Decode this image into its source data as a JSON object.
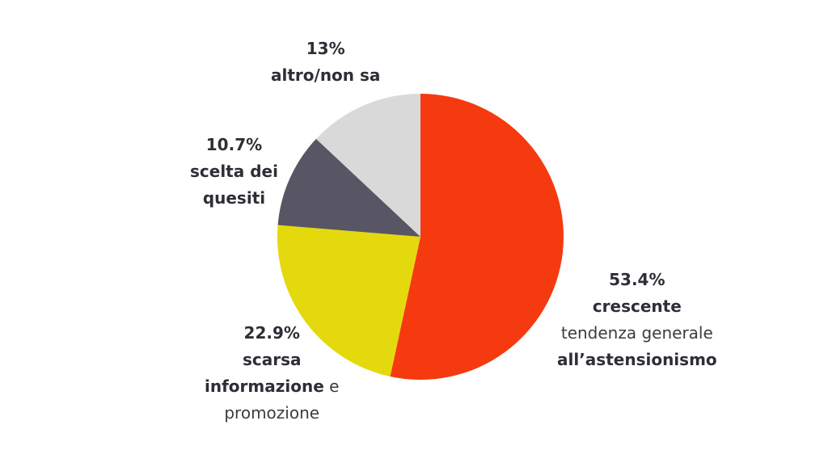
{
  "chart_data": {
    "type": "pie",
    "start_angle_deg": 0,
    "direction": "clockwise",
    "slices": [
      {
        "value": 53.4,
        "value_label": "53.4%",
        "color": "#f43a0e",
        "lines": [
          [
            {
              "text": "crescente",
              "weight": "bold"
            }
          ],
          [
            {
              "text": "tendenza generale",
              "weight": "normal"
            }
          ],
          [
            {
              "text": "all’astensionismo",
              "weight": "bold"
            }
          ]
        ]
      },
      {
        "value": 22.9,
        "value_label": "22.9%",
        "color": "#e3d90d",
        "lines": [
          [
            {
              "text": "scarsa",
              "weight": "bold"
            }
          ],
          [
            {
              "text": "informazione",
              "weight": "bold"
            },
            {
              "text": " e",
              "weight": "normal"
            }
          ],
          [
            {
              "text": "promozione",
              "weight": "normal"
            }
          ]
        ]
      },
      {
        "value": 10.7,
        "value_label": "10.7%",
        "color": "#585665",
        "lines": [
          [
            {
              "text": "scelta dei",
              "weight": "bold"
            }
          ],
          [
            {
              "text": "quesiti",
              "weight": "bold"
            }
          ]
        ]
      },
      {
        "value": 13,
        "value_label": "13%",
        "color": "#dad9d9",
        "lines": [
          [
            {
              "text": "altro/non sa",
              "weight": "bold"
            }
          ]
        ]
      }
    ]
  }
}
